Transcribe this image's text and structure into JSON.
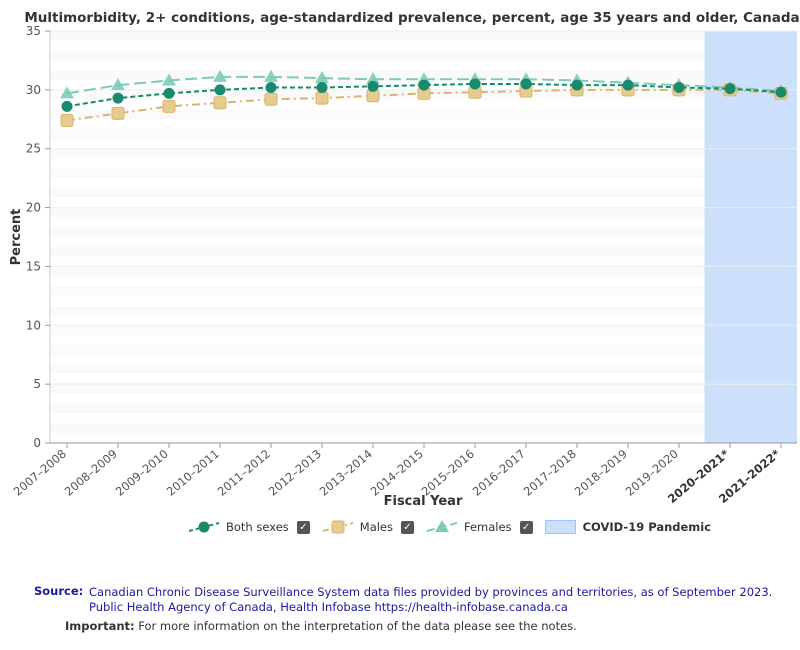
{
  "chart_data": {
    "type": "line",
    "title": "Multimorbidity, 2+ conditions, age-standardized prevalence, percent, age 35 years and older, Canada",
    "xlabel": "Fiscal Year",
    "ylabel": "Percent",
    "ylim": [
      0,
      35
    ],
    "yticks": [
      0,
      5,
      10,
      15,
      20,
      25,
      30,
      35
    ],
    "categories": [
      "2007–2008",
      "2008–2009",
      "2009–2010",
      "2010–2011",
      "2011–2012",
      "2012–2013",
      "2013–2014",
      "2014–2015",
      "2015–2016",
      "2016–2017",
      "2017–2018",
      "2018–2019",
      "2019–2020",
      "2020–2021*",
      "2021–2022*"
    ],
    "bold_categories": [
      "2020–2021*",
      "2021–2022*"
    ],
    "series": [
      {
        "name": "Both sexes",
        "color": "#1a8a6e",
        "marker": "circle",
        "dash": "dashed",
        "values": [
          28.6,
          29.3,
          29.7,
          30.0,
          30.2,
          30.2,
          30.3,
          30.4,
          30.5,
          30.5,
          30.4,
          30.4,
          30.2,
          30.1,
          29.8
        ]
      },
      {
        "name": "Males",
        "color": "#d9b46c",
        "marker": "square",
        "dash": "dashdot",
        "values": [
          27.4,
          28.0,
          28.6,
          28.9,
          29.2,
          29.3,
          29.5,
          29.7,
          29.8,
          29.9,
          30.0,
          30.0,
          30.0,
          30.0,
          29.7
        ]
      },
      {
        "name": "Females",
        "color": "#7ccbb9",
        "marker": "triangle",
        "dash": "longdash",
        "values": [
          29.7,
          30.4,
          30.8,
          31.1,
          31.1,
          31.0,
          30.9,
          30.9,
          30.9,
          30.9,
          30.8,
          30.6,
          30.4,
          30.2,
          29.9
        ]
      }
    ],
    "shaded_region": {
      "label": "COVID-19 Pandemic",
      "from": "2020–2021*",
      "to": "2021–2022*",
      "color": "#cce0fb"
    },
    "legend_position": "bottom-center"
  },
  "legend": {
    "both": "Both sexes",
    "males": "Males",
    "females": "Females",
    "covid": "COVID-19 Pandemic"
  },
  "source": {
    "key": "Source:",
    "line1": "Canadian Chronic Disease Surveillance System data files provided by provinces and territories, as of September 2023.",
    "line2": "Public Health Agency of Canada, Health Infobase https://health-infobase.canada.ca"
  },
  "important": {
    "key": "Important:",
    "text": "For more information on the interpretation of the data please see the notes."
  }
}
